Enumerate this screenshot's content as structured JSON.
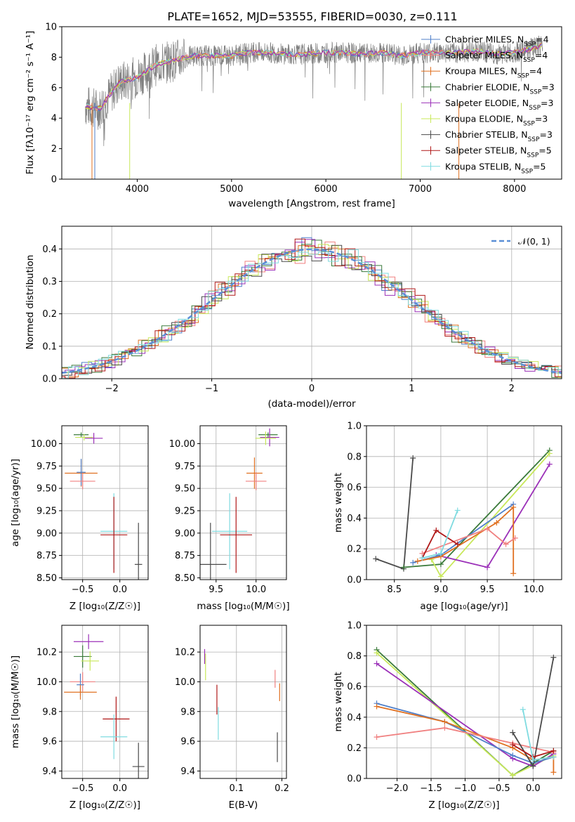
{
  "title": "PLATE=1652, MJD=53555, FIBERID=0030, z=0.111",
  "series": [
    {
      "name": "Chabrier MILES, N_SSP=4",
      "color": "#4f7fc9"
    },
    {
      "name": "Salpeter MILES, N_SSP=4",
      "color": "#f08080"
    },
    {
      "name": "Kroupa MILES, N_SSP=4",
      "color": "#e07020"
    },
    {
      "name": "Chabrier ELODIE, N_SSP=3",
      "color": "#3a7a3a"
    },
    {
      "name": "Salpeter ELODIE, N_SSP=3",
      "color": "#9b30b8"
    },
    {
      "name": "Kroupa ELODIE, N_SSP=3",
      "color": "#c8e85a"
    },
    {
      "name": "Chabrier STELIB, N_SSP=3",
      "color": "#4a4a4a"
    },
    {
      "name": "Salpeter STELIB, N_SSP=5",
      "color": "#b01818"
    },
    {
      "name": "Kroupa STELIB, N_SSP=5",
      "color": "#7fdbe0"
    }
  ],
  "chart_data": [
    {
      "type": "line",
      "title": "PLATE=1652, MJD=53555, FIBERID=0030, z=0.111",
      "xlabel": "wavelength [Angstrom, rest frame]",
      "ylabel": "Flux [f_λ 10^-17 erg cm^-2 s^-1 A^-1]",
      "xlim": [
        3200,
        8500
      ],
      "ylim": [
        0,
        10
      ],
      "xticks": [
        "4000",
        "5000",
        "6000",
        "7000",
        "8000"
      ],
      "yticks": [
        "0",
        "2",
        "4",
        "6",
        "8",
        "10"
      ],
      "spectrum_x": [
        3450,
        3600,
        3800,
        4000,
        4200,
        4400,
        4600,
        4800,
        5000,
        5200,
        5400,
        5600,
        5800,
        6000,
        6200,
        6400,
        6600,
        6800,
        7000,
        7200,
        7400,
        7600,
        7800,
        8000,
        8200,
        8300
      ],
      "spectrum_y": [
        4.8,
        4.6,
        6.3,
        6.7,
        7.5,
        7.8,
        8.1,
        8.1,
        8.1,
        8.3,
        8.3,
        8.2,
        8.2,
        8.3,
        8.3,
        8.2,
        8.3,
        8.1,
        8.3,
        8.3,
        8.3,
        8.4,
        8.2,
        8.3,
        8.6,
        8.8
      ],
      "legend": "top-right"
    },
    {
      "type": "line",
      "xlabel": "(data-model)/error",
      "ylabel": "Normed distribution",
      "xlim": [
        -2.5,
        2.5
      ],
      "ylim": [
        0,
        0.47
      ],
      "xticks": [
        "−2",
        "−1",
        "0",
        "1",
        "2"
      ],
      "yticks": [
        "0.0",
        "0.1",
        "0.2",
        "0.3",
        "0.4"
      ],
      "reference_curve": "N(0,1)",
      "legend": "top-right"
    },
    {
      "type": "scatter",
      "xlabel": "Z [log10(Z/Z_sun)]",
      "ylabel": "age [log10(age/yr)]",
      "xlim": [
        -0.78,
        0.38
      ],
      "ylim": [
        8.48,
        10.2
      ],
      "xticks": [
        "−0.5",
        "0.0"
      ],
      "yticks": [
        "8.50",
        "8.75",
        "9.00",
        "9.25",
        "9.50",
        "9.75",
        "10.00"
      ],
      "points": [
        {
          "x": -0.52,
          "y": 10.1,
          "xe": 0.1,
          "ye": 0.05,
          "c": 3
        },
        {
          "x": -0.48,
          "y": 10.07,
          "xe": 0.12,
          "ye": 0.07,
          "c": 5
        },
        {
          "x": -0.35,
          "y": 10.06,
          "xe": 0.12,
          "ye": 0.12,
          "c": 4
        },
        {
          "x": -0.52,
          "y": 9.67,
          "xe": 0.22,
          "ye": 0.3,
          "c": 2
        },
        {
          "x": -0.52,
          "y": 9.68,
          "xe": 0.06,
          "ye": 0.3,
          "c": 0
        },
        {
          "x": -0.5,
          "y": 9.58,
          "xe": 0.17,
          "ye": 0.18,
          "c": 1
        },
        {
          "x": -0.08,
          "y": 9.02,
          "xe": 0.18,
          "ye": 0.85,
          "c": 8
        },
        {
          "x": -0.08,
          "y": 8.98,
          "xe": 0.18,
          "ye": 0.85,
          "c": 7
        },
        {
          "x": 0.25,
          "y": 8.65,
          "xe": 0.05,
          "ye": 0.93,
          "c": 6
        }
      ]
    },
    {
      "type": "scatter",
      "xlabel": "mass [log10(M/M_sun)]",
      "ylabel": "",
      "xlim": [
        9.3,
        10.38
      ],
      "ylim": [
        8.48,
        10.2
      ],
      "xticks": [
        "9.5",
        "10.0"
      ],
      "yticks": [
        "8.50",
        "8.75",
        "9.00",
        "9.25",
        "9.50",
        "9.75",
        "10.00"
      ],
      "points": [
        {
          "x": 10.15,
          "y": 10.1,
          "xe": 0.12,
          "ye": 0.05,
          "c": 3
        },
        {
          "x": 10.17,
          "y": 10.07,
          "xe": 0.12,
          "ye": 0.2,
          "c": 4
        },
        {
          "x": 10.12,
          "y": 10.06,
          "xe": 0.13,
          "ye": 0.15,
          "c": 5
        },
        {
          "x": 9.98,
          "y": 9.67,
          "xe": 0.1,
          "ye": 0.35,
          "c": 2
        },
        {
          "x": 10.0,
          "y": 9.58,
          "xe": 0.13,
          "ye": 0.2,
          "c": 1
        },
        {
          "x": 9.67,
          "y": 9.02,
          "xe": 0.22,
          "ye": 0.85,
          "c": 8
        },
        {
          "x": 9.75,
          "y": 8.98,
          "xe": 0.2,
          "ye": 0.85,
          "c": 7
        },
        {
          "x": 9.43,
          "y": 8.65,
          "xe": 0.2,
          "ye": 0.93,
          "c": 6
        }
      ]
    },
    {
      "type": "line",
      "xlabel": "age [log10(age/yr)]",
      "ylabel": "mass weight",
      "xlim": [
        8.2,
        10.3
      ],
      "ylim": [
        0,
        1
      ],
      "xticks": [
        "8.5",
        "9.0",
        "9.5",
        "10.0"
      ],
      "yticks": [
        "0.0",
        "0.2",
        "0.4",
        "0.6",
        "0.8",
        "1.0"
      ],
      "lines": [
        {
          "c": 6,
          "x": [
            8.3,
            8.6,
            8.7
          ],
          "y": [
            0.135,
            0.07,
            0.79
          ]
        },
        {
          "c": 3,
          "x": [
            8.6,
            9.0,
            10.17
          ],
          "y": [
            0.08,
            0.1,
            0.84
          ]
        },
        {
          "c": 5,
          "x": [
            8.9,
            9.0,
            10.17
          ],
          "y": [
            0.13,
            0.02,
            0.82
          ]
        },
        {
          "c": 4,
          "x": [
            8.95,
            9.5,
            10.17
          ],
          "y": [
            0.16,
            0.08,
            0.75
          ]
        },
        {
          "c": 0,
          "x": [
            8.7,
            9.0,
            9.78
          ],
          "y": [
            0.11,
            0.16,
            0.49
          ]
        },
        {
          "c": 2,
          "x": [
            8.75,
            9.0,
            9.6,
            9.78,
            9.78
          ],
          "y": [
            0.12,
            0.15,
            0.37,
            0.47,
            0.04
          ]
        },
        {
          "c": 1,
          "x": [
            8.8,
            9.5,
            9.7,
            9.8
          ],
          "y": [
            0.17,
            0.33,
            0.23,
            0.27
          ]
        },
        {
          "c": 7,
          "x": [
            8.8,
            8.95,
            9.18
          ],
          "y": [
            0.14,
            0.32,
            0.23
          ]
        },
        {
          "c": 8,
          "x": [
            8.8,
            9.0,
            9.18
          ],
          "y": [
            0.14,
            0.17,
            0.45
          ]
        }
      ]
    },
    {
      "type": "scatter",
      "xlabel": "Z [log10(Z/Z_sun)]",
      "ylabel": "mass [log10(M/M_sun)]",
      "xlim": [
        -0.78,
        0.38
      ],
      "ylim": [
        9.35,
        10.38
      ],
      "xticks": [
        "−0.5",
        "0.0"
      ],
      "yticks": [
        "9.4",
        "9.6",
        "9.8",
        "10.0",
        "10.2"
      ],
      "points": [
        {
          "x": -0.42,
          "y": 10.27,
          "xe": 0.2,
          "ye": 0.1,
          "c": 4
        },
        {
          "x": -0.5,
          "y": 10.17,
          "xe": 0.12,
          "ye": 0.15,
          "c": 3
        },
        {
          "x": -0.4,
          "y": 10.14,
          "xe": 0.12,
          "ye": 0.13,
          "c": 5
        },
        {
          "x": -0.5,
          "y": 10.0,
          "xe": 0.17,
          "ye": 0.13,
          "c": 1
        },
        {
          "x": -0.53,
          "y": 9.98,
          "xe": 0.05,
          "ye": 0.15,
          "c": 0
        },
        {
          "x": -0.53,
          "y": 9.93,
          "xe": 0.22,
          "ye": 0.1,
          "c": 2
        },
        {
          "x": -0.05,
          "y": 9.75,
          "xe": 0.18,
          "ye": 0.3,
          "c": 7
        },
        {
          "x": -0.08,
          "y": 9.63,
          "xe": 0.18,
          "ye": 0.3,
          "c": 8
        },
        {
          "x": 0.25,
          "y": 9.43,
          "xe": 0.08,
          "ye": 0.32,
          "c": 6
        }
      ]
    },
    {
      "type": "scatter",
      "xlabel": "E(B-V)",
      "ylabel": "",
      "xlim": [
        0.02,
        0.21
      ],
      "ylim": [
        9.35,
        10.38
      ],
      "xticks": [
        "0.1",
        "0.2"
      ],
      "yticks": [
        "9.4",
        "9.6",
        "9.8",
        "10.0",
        "10.2"
      ],
      "points": [
        {
          "x": 0.03,
          "y": 10.17,
          "ye": 0.1,
          "c": 4
        },
        {
          "x": 0.032,
          "y": 10.1,
          "ye": 0.18,
          "c": 5
        },
        {
          "x": 0.057,
          "y": 9.88,
          "ye": 0.2,
          "c": 7
        },
        {
          "x": 0.06,
          "y": 9.72,
          "ye": 0.22,
          "c": 8
        },
        {
          "x": 0.185,
          "y": 10.02,
          "ye": 0.12,
          "c": 1
        },
        {
          "x": 0.19,
          "y": 9.56,
          "ye": 0.2,
          "c": 6
        },
        {
          "x": 0.195,
          "y": 9.93,
          "ye": 0.12,
          "c": 2
        }
      ]
    },
    {
      "type": "line",
      "xlabel": "Z [log10(Z/Z_sun)]",
      "ylabel": "mass weight",
      "xlim": [
        -2.45,
        0.42
      ],
      "ylim": [
        0,
        1
      ],
      "xticks": [
        "−2.0",
        "−1.5",
        "−1.0",
        "−0.5",
        "0.0"
      ],
      "yticks": [
        "0.0",
        "0.2",
        "0.4",
        "0.6",
        "0.8",
        "1.0"
      ],
      "lines": [
        {
          "c": 3,
          "x": [
            -2.3,
            -0.3,
            0.0,
            0.3
          ],
          "y": [
            0.84,
            0.02,
            0.1,
            0.18
          ]
        },
        {
          "c": 5,
          "x": [
            -2.3,
            -0.3,
            0.3
          ],
          "y": [
            0.82,
            0.02,
            0.15
          ]
        },
        {
          "c": 4,
          "x": [
            -2.3,
            -0.3,
            0.0,
            0.3
          ],
          "y": [
            0.75,
            0.13,
            0.08,
            0.16
          ]
        },
        {
          "c": 0,
          "x": [
            -2.3,
            -1.3,
            -0.3,
            0.0,
            0.3
          ],
          "y": [
            0.49,
            0.37,
            0.15,
            0.1,
            0.14
          ]
        },
        {
          "c": 2,
          "x": [
            -2.3,
            -1.3,
            -0.3,
            0.0,
            0.3,
            0.3
          ],
          "y": [
            0.47,
            0.37,
            0.2,
            0.12,
            0.14,
            0.04
          ]
        },
        {
          "c": 1,
          "x": [
            -2.3,
            -1.3,
            -0.3,
            0.3
          ],
          "y": [
            0.27,
            0.33,
            0.23,
            0.17
          ]
        },
        {
          "c": 6,
          "x": [
            -0.3,
            0.0,
            0.3
          ],
          "y": [
            0.3,
            0.08,
            0.79
          ]
        },
        {
          "c": 7,
          "x": [
            -0.3,
            0.0,
            0.3
          ],
          "y": [
            0.22,
            0.14,
            0.18
          ]
        },
        {
          "c": 8,
          "x": [
            -0.15,
            0.0,
            0.3
          ],
          "y": [
            0.45,
            0.12,
            0.14
          ]
        }
      ]
    }
  ]
}
